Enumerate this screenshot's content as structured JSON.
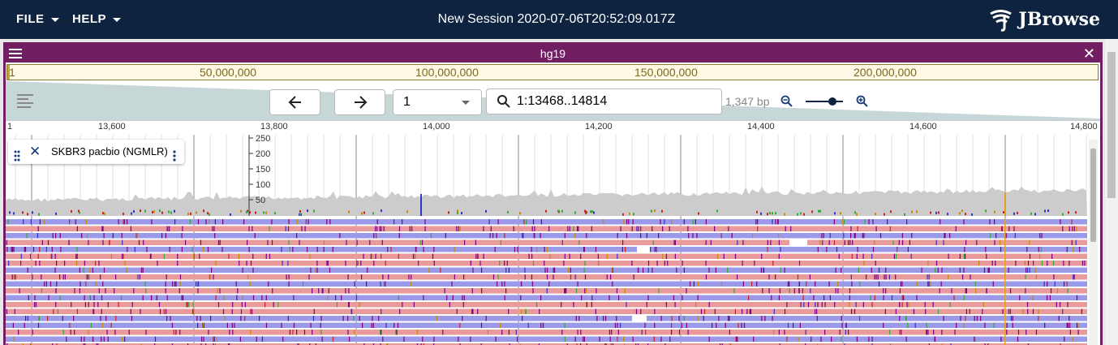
{
  "appbar": {
    "file_menu": "FILE",
    "help_menu": "HELP",
    "session_title": "New Session 2020-07-06T20:52:09.017Z",
    "logo_text": "JBrowse",
    "background": "#0d233f"
  },
  "view": {
    "assembly_title": "hg19",
    "accent_color": "#721e63",
    "overview_ticks": [
      "1",
      "50,000,000",
      "100,000,000",
      "150,000,000",
      "200,000,000"
    ],
    "refname": "1",
    "locstring": "1:13468..14814",
    "bp_count": "1,347 bp",
    "zoom_level": 0.72,
    "ruler_ticks": [
      "1",
      "13,600",
      "13,800",
      "14,000",
      "14,200",
      "14,400",
      "14,600",
      "14,800"
    ]
  },
  "track": {
    "label": "SKBR3 pacbio (NGMLR)",
    "coverage_scale": [
      "250",
      "200",
      "150",
      "100",
      "50"
    ],
    "colors": {
      "forward_read": "#e99a9a",
      "reverse_read": "#9a9ae8",
      "coverage": "#cccccc",
      "insertion": "#800080"
    }
  }
}
